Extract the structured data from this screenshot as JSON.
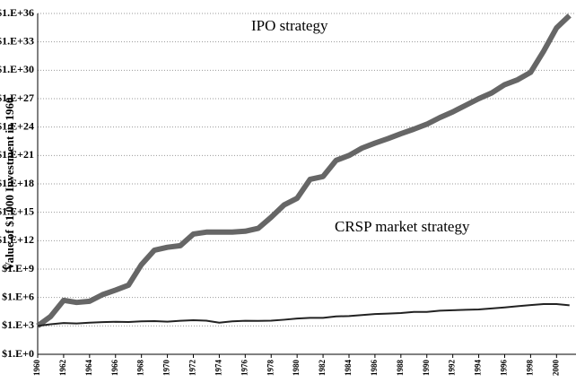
{
  "chart_data": {
    "type": "line",
    "y_label": "Value of $1,000 Investment in 1960",
    "x": [
      1960,
      1961,
      1962,
      1963,
      1964,
      1965,
      1966,
      1967,
      1968,
      1969,
      1970,
      1971,
      1972,
      1973,
      1974,
      1975,
      1976,
      1977,
      1978,
      1979,
      1980,
      1981,
      1982,
      1983,
      1984,
      1985,
      1986,
      1987,
      1988,
      1989,
      1990,
      1991,
      1992,
      1993,
      1994,
      1995,
      1996,
      1997,
      1998,
      1999,
      2000,
      2001
    ],
    "series": [
      {
        "name": "IPO strategy",
        "color": "#666666",
        "width": 6,
        "values": [
          1000.0,
          10000.0,
          500000.0,
          300000.0,
          400000.0,
          2000000.0,
          6000000.0,
          20000000.0,
          3000000000.0,
          100000000000.0,
          200000000000.0,
          300000000000.0,
          5000000000000.0,
          8000000000000.0,
          8000000000000.0,
          8000000000000.0,
          10000000000000.0,
          20000000000000.0,
          300000000000000.0,
          6000000000000000.0,
          3e+16,
          3e+18,
          6e+18,
          3e+20,
          1e+21,
          6e+21,
          2e+22,
          6e+22,
          2e+23,
          6e+23,
          2e+24,
          1e+25,
          4e+25,
          2e+26,
          1e+27,
          4e+27,
          3e+28,
          1e+29,
          6e+29,
          1e+32,
          3e+34,
          6e+35
        ]
      },
      {
        "name": "CRSP market strategy",
        "color": "#222222",
        "width": 2,
        "values": [
          1000.0,
          1500.0,
          2000.0,
          1800.0,
          2200.0,
          2500.0,
          2700.0,
          2600.0,
          3000.0,
          3200.0,
          2800.0,
          3500.0,
          4000.0,
          3600.0,
          2200.0,
          3000.0,
          3500.0,
          3400.0,
          3600.0,
          4500.0,
          6000.0,
          7000.0,
          7000.0,
          10000.0,
          11000.0,
          14000.0,
          18000.0,
          20000.0,
          23000.0,
          30000.0,
          30000.0,
          40000.0,
          45000.0,
          50000.0,
          55000.0,
          70000.0,
          90000.0,
          120000.0,
          160000.0,
          200000.0,
          200000.0,
          150000.0
        ]
      }
    ],
    "xlim": [
      1960,
      2001.5
    ],
    "xticks": [
      1960,
      1962,
      1964,
      1966,
      1968,
      1970,
      1972,
      1974,
      1976,
      1978,
      1980,
      1982,
      1984,
      1986,
      1988,
      1990,
      1992,
      1994,
      1996,
      1998,
      2000
    ],
    "ylim": [
      1,
      1e+36
    ],
    "log_scale": true,
    "yticks": [
      {
        "value": 1,
        "label": "$1.E+0"
      },
      {
        "value": 1000.0,
        "label": "$1.E+3"
      },
      {
        "value": 1000000.0,
        "label": "$1.E+6"
      },
      {
        "value": 1000000000.0,
        "label": "$1.E+9"
      },
      {
        "value": 1000000000000.0,
        "label": "$1.E+12"
      },
      {
        "value": 1000000000000000.0,
        "label": "$1.E+15"
      },
      {
        "value": 1e+18,
        "label": "$1.E+18"
      },
      {
        "value": 1e+21,
        "label": "$1.E+21"
      },
      {
        "value": 1e+24,
        "label": "$1.E+24"
      },
      {
        "value": 1e+27,
        "label": "$1.E+27"
      },
      {
        "value": 1e+30,
        "label": "$1.E+30"
      },
      {
        "value": 1e+33,
        "label": "$1.E+33"
      },
      {
        "value": 1e+36,
        "label": "$1.E+36"
      }
    ],
    "grid": true
  }
}
